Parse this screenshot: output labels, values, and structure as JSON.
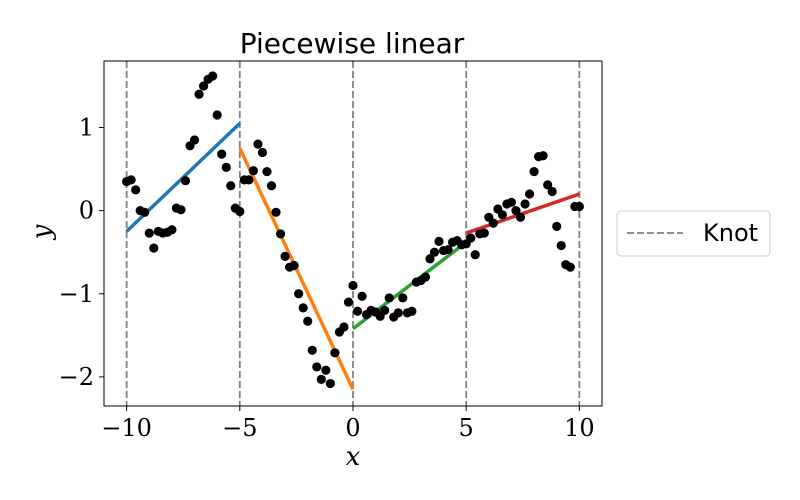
{
  "chart_data": {
    "type": "scatter",
    "title": "Piecewise linear",
    "xlabel": "x",
    "ylabel": "y",
    "xlim": [
      -11,
      11
    ],
    "ylim": [
      -2.35,
      1.8
    ],
    "xticks": [
      -10,
      -5,
      0,
      5,
      10
    ],
    "xtick_labels": [
      "−10",
      "−5",
      "0",
      "5",
      "10"
    ],
    "yticks": [
      1,
      0,
      -1,
      -2
    ],
    "ytick_labels": [
      "1",
      "0",
      "−1",
      "−2"
    ],
    "grid": false,
    "legend": {
      "position": "right",
      "entries": [
        {
          "label": "Knot",
          "style": "dashed",
          "color": "#808080"
        }
      ]
    },
    "knots": [
      -10,
      -5,
      0,
      5,
      10
    ],
    "points": {
      "color": "#000000",
      "x": [
        -10.0,
        -9.8,
        -9.6,
        -9.4,
        -9.2,
        -9.0,
        -8.8,
        -8.6,
        -8.4,
        -8.2,
        -8.0,
        -7.8,
        -7.6,
        -7.4,
        -7.2,
        -7.0,
        -6.8,
        -6.6,
        -6.4,
        -6.2,
        -6.0,
        -5.8,
        -5.6,
        -5.4,
        -5.2,
        -5.0,
        -4.8,
        -4.6,
        -4.4,
        -4.2,
        -4.0,
        -3.8,
        -3.6,
        -3.4,
        -3.2,
        -3.0,
        -2.8,
        -2.6,
        -2.4,
        -2.2,
        -2.0,
        -1.8,
        -1.6,
        -1.4,
        -1.2,
        -1.0,
        -0.8,
        -0.6,
        -0.4,
        -0.2,
        0.0,
        0.2,
        0.4,
        0.6,
        0.8,
        1.0,
        1.2,
        1.4,
        1.6,
        1.8,
        2.0,
        2.2,
        2.4,
        2.6,
        2.8,
        3.0,
        3.2,
        3.4,
        3.6,
        3.8,
        4.0,
        4.2,
        4.4,
        4.6,
        4.8,
        5.0,
        5.2,
        5.4,
        5.6,
        5.8,
        6.0,
        6.2,
        6.4,
        6.6,
        6.8,
        7.0,
        7.2,
        7.4,
        7.6,
        7.8,
        8.0,
        8.2,
        8.4,
        8.6,
        8.8,
        9.0,
        9.2,
        9.4,
        9.6,
        9.8,
        10.0
      ],
      "y": [
        0.35,
        0.37,
        0.25,
        0.0,
        -0.02,
        -0.27,
        -0.45,
        -0.25,
        -0.27,
        -0.26,
        -0.23,
        0.03,
        0.01,
        0.36,
        0.78,
        0.85,
        1.4,
        1.5,
        1.58,
        1.62,
        1.15,
        0.68,
        0.52,
        0.3,
        0.03,
        -0.01,
        0.37,
        0.37,
        0.48,
        0.8,
        0.7,
        0.47,
        0.3,
        -0.02,
        -0.28,
        -0.55,
        -0.68,
        -0.66,
        -1.0,
        -1.17,
        -1.33,
        -1.68,
        -1.88,
        -2.03,
        -1.92,
        -2.08,
        -1.71,
        -1.46,
        -1.4,
        -1.1,
        -0.9,
        -1.21,
        -1.03,
        -1.25,
        -1.2,
        -1.22,
        -1.27,
        -1.2,
        -1.05,
        -1.28,
        -1.23,
        -1.05,
        -1.23,
        -1.21,
        -0.86,
        -0.84,
        -0.8,
        -0.58,
        -0.5,
        -0.37,
        -0.48,
        -0.47,
        -0.38,
        -0.36,
        -0.41,
        -0.4,
        -0.33,
        -0.53,
        -0.28,
        -0.27,
        -0.08,
        -0.15,
        0.02,
        -0.05,
        0.08,
        0.1,
        0.0,
        -0.08,
        0.08,
        0.2,
        0.47,
        0.65,
        0.66,
        0.31,
        0.23,
        -0.19,
        -0.42,
        -0.65,
        -0.68,
        0.05,
        0.05
      ]
    },
    "segments": [
      {
        "x": [
          -10,
          -5
        ],
        "y": [
          -0.25,
          1.05
        ],
        "color": "#1f77b4"
      },
      {
        "x": [
          -5,
          0
        ],
        "y": [
          0.75,
          -2.15
        ],
        "color": "#ff7f0e"
      },
      {
        "x": [
          0,
          5
        ],
        "y": [
          -1.42,
          -0.38
        ],
        "color": "#2ca02c"
      },
      {
        "x": [
          5,
          10
        ],
        "y": [
          -0.27,
          0.2
        ],
        "color": "#d62728"
      }
    ]
  }
}
